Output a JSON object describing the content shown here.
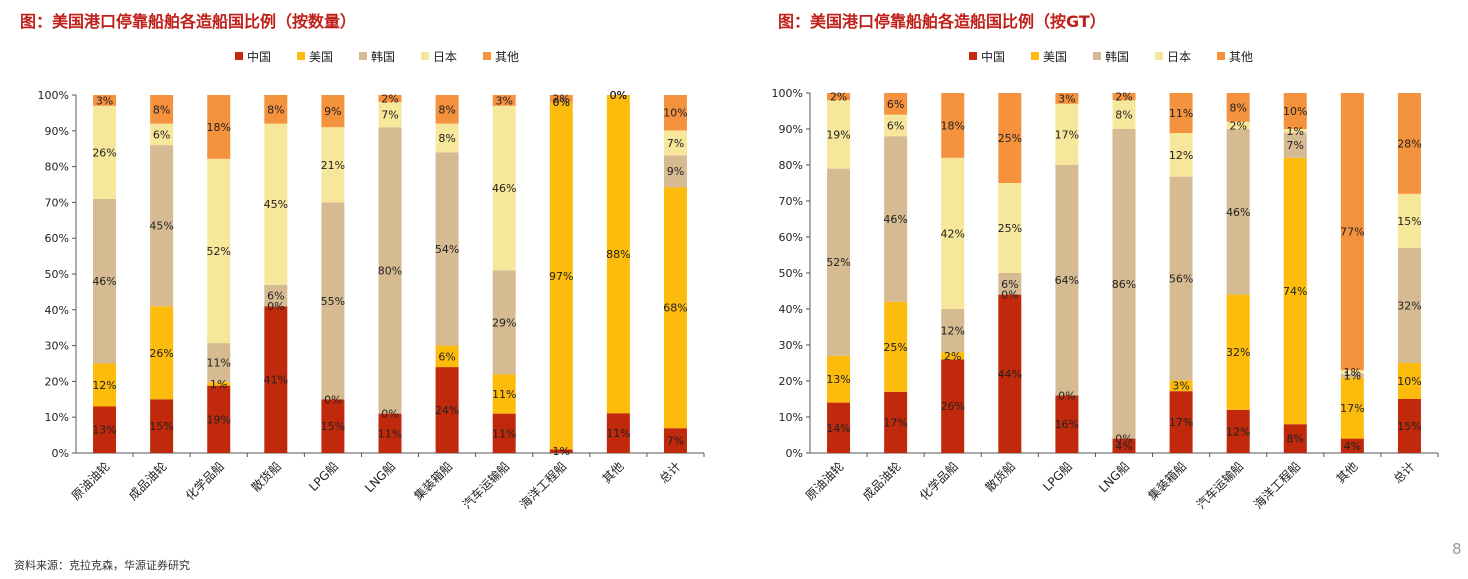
{
  "colors": {
    "中国": "#c0290b",
    "美国": "#fdbb0c",
    "韩国": "#d6bb92",
    "日本": "#f7e79b",
    "其他": "#f5923e"
  },
  "source": "资料来源：克拉克森，华源证券研究",
  "page_number": "8",
  "chart_data": [
    {
      "type": "bar",
      "stacked": true,
      "title": "图：美国港口停靠船舶各造船国比例（按数量）",
      "categories": [
        "原油油轮",
        "成品油轮",
        "化学品船",
        "散货船",
        "LPG船",
        "LNG船",
        "集装箱船",
        "汽车运输船",
        "海洋工程船",
        "其他",
        "总计"
      ],
      "yticks": [
        "0%",
        "10%",
        "20%",
        "30%",
        "40%",
        "50%",
        "60%",
        "70%",
        "80%",
        "90%",
        "100%"
      ],
      "ylim": [
        0,
        100
      ],
      "legend_position": "top",
      "series": [
        {
          "name": "中国",
          "values": [
            13,
            15,
            19,
            41,
            15,
            11,
            24,
            11,
            1,
            11,
            7
          ],
          "labels": [
            "13%",
            "15%",
            "19%",
            "41%",
            "15%",
            "11%",
            "24%",
            "11%",
            "1%",
            "11%",
            "7%"
          ]
        },
        {
          "name": "美国",
          "values": [
            12,
            26,
            1,
            0,
            0,
            0,
            6,
            11,
            97,
            88,
            68
          ],
          "labels": [
            "12%",
            "26%",
            "1%",
            "0%",
            "0%",
            "0%",
            "6%",
            "11%",
            "97%",
            "88%",
            "68%"
          ]
        },
        {
          "name": "韩国",
          "values": [
            46,
            45,
            11,
            6,
            55,
            80,
            54,
            29,
            0,
            0,
            9
          ],
          "labels": [
            "46%",
            "45%",
            "11%",
            "6%",
            "55%",
            "80%",
            "54%",
            "29%",
            "0%",
            "0%",
            "9%"
          ]
        },
        {
          "name": "日本",
          "values": [
            26,
            6,
            52,
            45,
            21,
            7,
            8,
            46,
            0,
            0,
            7
          ],
          "labels": [
            "26%",
            "6%",
            "52%",
            "45%",
            "21%",
            "7%",
            "8%",
            "46%",
            "0%",
            "0%",
            "7%"
          ]
        },
        {
          "name": "其他",
          "values": [
            3,
            8,
            18,
            8,
            9,
            2,
            8,
            3,
            2,
            0,
            10
          ],
          "labels": [
            "3%",
            "8%",
            "18%",
            "8%",
            "9%",
            "2%",
            "8%",
            "3%",
            "2%",
            "0%",
            "10%"
          ]
        }
      ]
    },
    {
      "type": "bar",
      "stacked": true,
      "title": "图：美国港口停靠船舶各造船国比例（按GT）",
      "categories": [
        "原油油轮",
        "成品油轮",
        "化学品船",
        "散货船",
        "LPG船",
        "LNG船",
        "集装箱船",
        "汽车运输船",
        "海洋工程船",
        "其他",
        "总计"
      ],
      "yticks": [
        "0%",
        "10%",
        "20%",
        "30%",
        "40%",
        "50%",
        "60%",
        "70%",
        "80%",
        "90%",
        "100%"
      ],
      "ylim": [
        0,
        100
      ],
      "legend_position": "top",
      "series": [
        {
          "name": "中国",
          "values": [
            14,
            17,
            26,
            44,
            16,
            4,
            17,
            12,
            8,
            4,
            15
          ],
          "labels": [
            "14%",
            "17%",
            "26%",
            "44%",
            "16%",
            "4%",
            "17%",
            "12%",
            "8%",
            "4%",
            "15%"
          ]
        },
        {
          "name": "美国",
          "values": [
            13,
            25,
            2,
            0,
            0,
            0,
            3,
            32,
            74,
            17,
            10
          ],
          "labels": [
            "13%",
            "25%",
            "2%",
            "0%",
            "0%",
            "0%",
            "3%",
            "32%",
            "74%",
            "17%",
            "10%"
          ]
        },
        {
          "name": "韩国",
          "values": [
            52,
            46,
            12,
            6,
            64,
            86,
            56,
            46,
            7,
            1,
            32
          ],
          "labels": [
            "52%",
            "46%",
            "12%",
            "6%",
            "64%",
            "86%",
            "56%",
            "46%",
            "7%",
            "1%",
            "32%"
          ]
        },
        {
          "name": "日本",
          "values": [
            19,
            6,
            42,
            25,
            17,
            8,
            12,
            2,
            1,
            1,
            15
          ],
          "labels": [
            "19%",
            "6%",
            "42%",
            "25%",
            "17%",
            "8%",
            "12%",
            "2%",
            "1%",
            "1%",
            "15%"
          ]
        },
        {
          "name": "其他",
          "values": [
            2,
            6,
            18,
            25,
            3,
            2,
            11,
            8,
            10,
            77,
            28
          ],
          "labels": [
            "2%",
            "6%",
            "18%",
            "25%",
            "3%",
            "2%",
            "11%",
            "8%",
            "10%",
            "77%",
            "28%"
          ]
        }
      ]
    }
  ]
}
